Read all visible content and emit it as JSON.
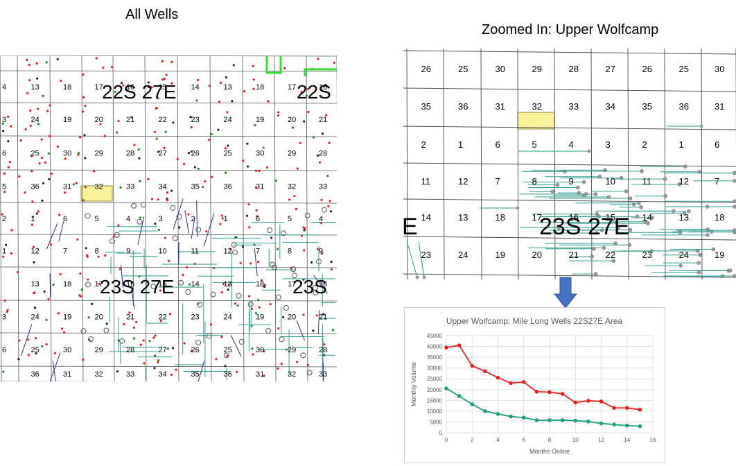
{
  "titles": {
    "all_wells": "All Wells",
    "zoomed": "Zoomed In:  Upper Wolfcamp"
  },
  "left_map": {
    "rows": [
      [
        "4",
        "13",
        "18",
        "17",
        "16",
        "15",
        "14",
        "13",
        "18",
        "17",
        "16"
      ],
      [
        "3",
        "24",
        "19",
        "20",
        "21",
        "22",
        "23",
        "24",
        "19",
        "20",
        "21"
      ],
      [
        "6",
        "25",
        "30",
        "29",
        "28",
        "27",
        "26",
        "25",
        "30",
        "29",
        "28"
      ],
      [
        "5",
        "36",
        "31",
        "32",
        "33",
        "34",
        "35",
        "36",
        "31",
        "32",
        "33"
      ],
      [
        "2",
        "1",
        "6",
        "5",
        "4",
        "3",
        "2",
        "1",
        "6",
        "5",
        "4"
      ],
      [
        "1",
        "12",
        "7",
        "8",
        "9",
        "10",
        "11",
        "12",
        "7",
        "8",
        "9"
      ],
      [
        "",
        "13",
        "18",
        "17",
        "16",
        "15",
        "14",
        "13",
        "18",
        "17",
        "16"
      ],
      [
        "3",
        "24",
        "19",
        "20",
        "21",
        "22",
        "23",
        "24",
        "19",
        "20",
        "21"
      ],
      [
        "6",
        "25",
        "30",
        "29",
        "28",
        "27",
        "26",
        "25",
        "30",
        "29",
        "28"
      ],
      [
        "",
        "36",
        "31",
        "32",
        "33",
        "34",
        "35",
        "36",
        "31",
        "32",
        "33"
      ]
    ],
    "township_labels": [
      "22S 27E",
      "22S",
      "23S 27E",
      "23S"
    ],
    "highlight_section": "32",
    "colors": {
      "well_red": "#e02020",
      "well_green": "#1a8a1a",
      "lateral": "#2a9d8f",
      "boundary": "#33dd33",
      "highlight": "#fbf29a"
    }
  },
  "right_map": {
    "rows": [
      [
        "26",
        "25",
        "30",
        "29",
        "28",
        "27",
        "26",
        "25",
        "30"
      ],
      [
        "35",
        "36",
        "31",
        "32",
        "33",
        "34",
        "35",
        "36",
        "31"
      ],
      [
        "2",
        "1",
        "6",
        "5",
        "4",
        "3",
        "2",
        "1",
        "6"
      ],
      [
        "11",
        "12",
        "7",
        "8",
        "9",
        "10",
        "11",
        "12",
        "7"
      ],
      [
        "14",
        "13",
        "18",
        "17",
        "16",
        "15",
        "14",
        "13",
        "18"
      ],
      [
        "23",
        "24",
        "19",
        "20",
        "21",
        "22",
        "23",
        "24",
        "19"
      ]
    ],
    "township_label": "23S 27E",
    "edge_label": "E",
    "highlight_section": "32"
  },
  "chart_data": {
    "type": "line",
    "title": "Upper Wolfcamp:  Mile Long Wells 22S27E Area",
    "xlabel": "Months Online",
    "ylabel": "Monthly Volume",
    "xlim": [
      0,
      16
    ],
    "ylim": [
      0,
      45000
    ],
    "x_ticks": [
      "0",
      "2",
      "4",
      "6",
      "8",
      "10",
      "12",
      "14",
      "16"
    ],
    "y_ticks": [
      "0",
      "5000",
      "10000",
      "15000",
      "20000",
      "25000",
      "30000",
      "35000",
      "40000",
      "45000"
    ],
    "grid": true,
    "series": [
      {
        "color": "#e8201e",
        "x": [
          0,
          1,
          2,
          3,
          4,
          5,
          6,
          7,
          8,
          9,
          10,
          11,
          12,
          13,
          14,
          15
        ],
        "values": [
          39500,
          40500,
          31000,
          28500,
          25500,
          23000,
          23500,
          19000,
          18800,
          18000,
          14000,
          14800,
          14500,
          11500,
          11500,
          10700
        ]
      },
      {
        "color": "#1aa07a",
        "x": [
          0,
          1,
          2,
          3,
          4,
          5,
          6,
          7,
          8,
          9,
          10,
          11,
          12,
          13,
          14,
          15
        ],
        "values": [
          20500,
          17000,
          13200,
          10000,
          8700,
          7500,
          7000,
          5800,
          5800,
          5800,
          5600,
          5200,
          4300,
          3800,
          3300,
          3000
        ]
      }
    ]
  }
}
